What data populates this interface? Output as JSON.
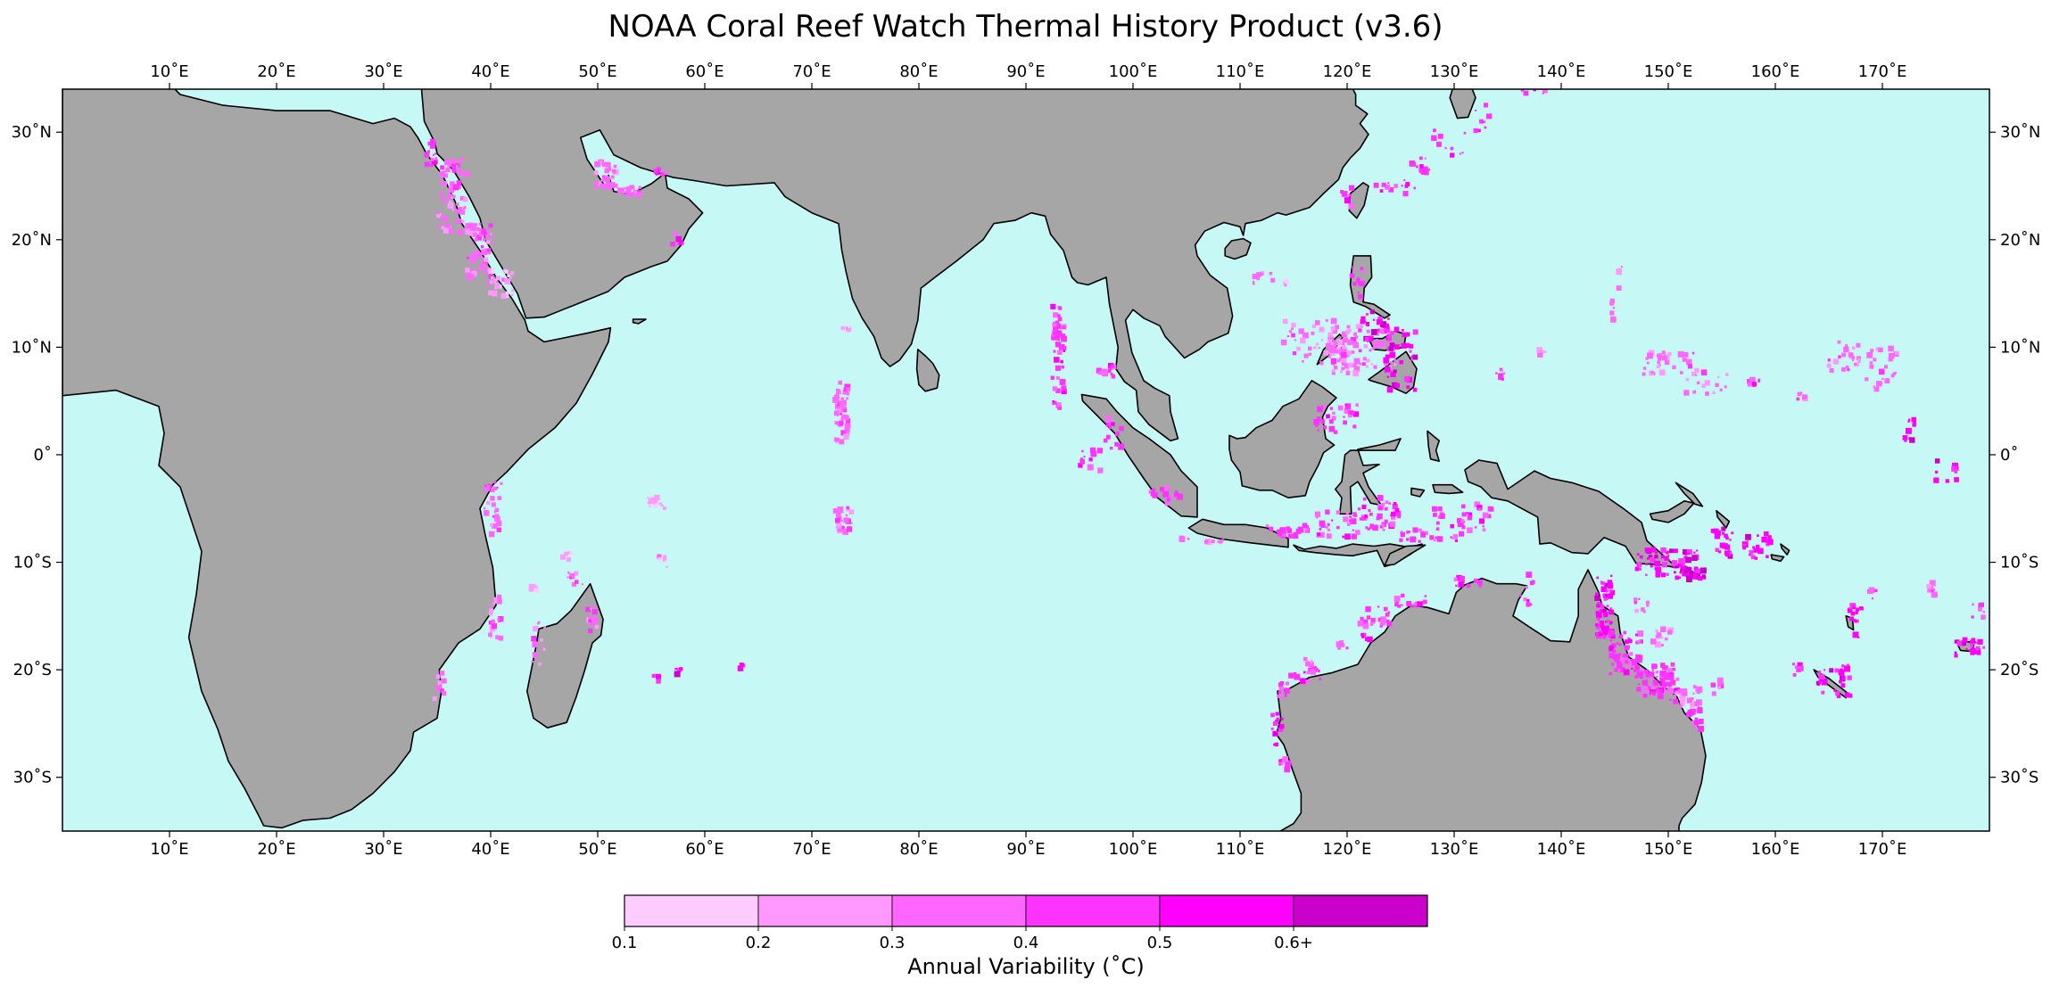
{
  "title": "NOAA Coral Reef Watch Thermal History Product (v3.6)",
  "map": {
    "lon_range": [
      0,
      180
    ],
    "lat_range": [
      -35,
      34
    ],
    "ocean_color": "#c6f8f6",
    "land_color": "#a6a6a6",
    "coast_color": "#000000",
    "lon_ticks": [
      {
        "value": 10,
        "label": "10˚E"
      },
      {
        "value": 20,
        "label": "20˚E"
      },
      {
        "value": 30,
        "label": "30˚E"
      },
      {
        "value": 40,
        "label": "40˚E"
      },
      {
        "value": 50,
        "label": "50˚E"
      },
      {
        "value": 60,
        "label": "60˚E"
      },
      {
        "value": 70,
        "label": "70˚E"
      },
      {
        "value": 80,
        "label": "80˚E"
      },
      {
        "value": 90,
        "label": "90˚E"
      },
      {
        "value": 100,
        "label": "100˚E"
      },
      {
        "value": 110,
        "label": "110˚E"
      },
      {
        "value": 120,
        "label": "120˚E"
      },
      {
        "value": 130,
        "label": "130˚E"
      },
      {
        "value": 140,
        "label": "140˚E"
      },
      {
        "value": 150,
        "label": "150˚E"
      },
      {
        "value": 160,
        "label": "160˚E"
      },
      {
        "value": 170,
        "label": "170˚E"
      }
    ],
    "lat_ticks": [
      {
        "value": 30,
        "label": "30˚N"
      },
      {
        "value": 20,
        "label": "20˚N"
      },
      {
        "value": 10,
        "label": "10˚N"
      },
      {
        "value": 0,
        "label": "0˚"
      },
      {
        "value": -10,
        "label": "10˚S"
      },
      {
        "value": -20,
        "label": "20˚S"
      },
      {
        "value": -30,
        "label": "30˚S"
      }
    ]
  },
  "colorbar": {
    "title": "Annual Variability (˚C)",
    "colors": [
      "#ffccff",
      "#ff99ff",
      "#ff66ff",
      "#ff33ff",
      "#ff00ff",
      "#cc00cc"
    ],
    "tick_labels": [
      "0.1",
      "0.2",
      "0.3",
      "0.4",
      "0.5",
      "0.6+"
    ]
  }
}
